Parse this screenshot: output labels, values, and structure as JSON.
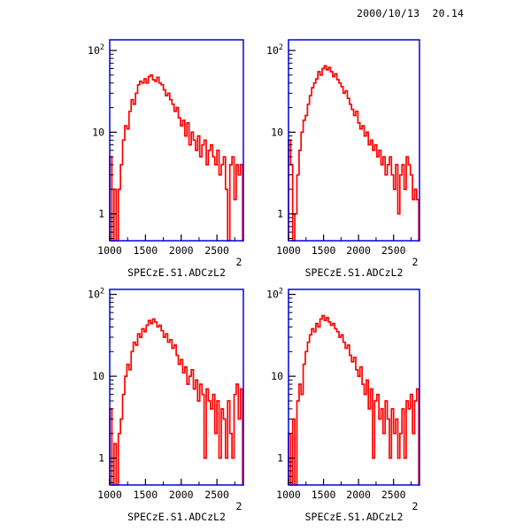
{
  "header": {
    "timestamp": "2000/10/13  20.14"
  },
  "colors": {
    "frame": "#0000ee",
    "histogram": "#ff0000",
    "text": "#000000",
    "background": "#ffffff"
  },
  "chart_data": [
    {
      "type": "bar",
      "subtype": "step-histogram",
      "position": "top-left",
      "xlabel": "SPECzE.S1.ADCzL2",
      "corner_label": "2",
      "ylog": true,
      "xlim": [
        1000,
        2870
      ],
      "ylim": [
        0.47,
        135
      ],
      "x_ticks": [
        1000,
        1500,
        2000,
        2500
      ],
      "x_minor_ticks": [
        1250,
        1750,
        2250,
        2750
      ],
      "y_ticks": [
        {
          "label": "1",
          "value": 1
        },
        {
          "label": "10",
          "value": 10
        },
        {
          "label": "10",
          "sup": "2",
          "value": 100
        }
      ],
      "bin_start": 1000,
      "bin_width": 30,
      "values": [
        5,
        0,
        2,
        0,
        2,
        4,
        8,
        12,
        11,
        18,
        25,
        22,
        30,
        38,
        42,
        40,
        45,
        40,
        48,
        50,
        44,
        42,
        47,
        40,
        38,
        33,
        28,
        30,
        25,
        22,
        18,
        20,
        15,
        12,
        14,
        9,
        13,
        7,
        10,
        8,
        6,
        9,
        5,
        7,
        8,
        4,
        6,
        7,
        5,
        4,
        6,
        3,
        4,
        5,
        2,
        0,
        4,
        5,
        1.5,
        4,
        3,
        4,
        0
      ]
    },
    {
      "type": "bar",
      "subtype": "step-histogram",
      "position": "top-right",
      "xlabel": "SPECzE.S1.ADCzL2",
      "corner_label": "2",
      "ylog": true,
      "xlim": [
        1000,
        2870
      ],
      "ylim": [
        0.47,
        135
      ],
      "x_ticks": [
        1000,
        1500,
        2000,
        2500
      ],
      "x_minor_ticks": [
        1250,
        1750,
        2250,
        2750
      ],
      "y_ticks": [
        {
          "label": "1",
          "value": 1
        },
        {
          "label": "10",
          "value": 10
        },
        {
          "label": "10",
          "sup": "2",
          "value": 100
        }
      ],
      "bin_start": 1000,
      "bin_width": 30,
      "values": [
        8,
        4,
        0,
        1,
        3,
        6,
        10,
        14,
        16,
        22,
        28,
        35,
        40,
        45,
        55,
        50,
        60,
        65,
        58,
        62,
        55,
        48,
        52,
        44,
        40,
        36,
        30,
        32,
        26,
        22,
        19,
        16,
        18,
        13,
        11,
        12,
        9,
        10,
        7,
        8,
        6,
        7,
        5,
        6,
        4,
        5,
        3,
        4,
        5,
        3,
        2,
        4,
        1,
        3,
        4,
        2,
        5,
        4,
        3,
        1.5,
        2,
        1.5,
        0
      ]
    },
    {
      "type": "bar",
      "subtype": "step-histogram",
      "position": "bottom-left",
      "xlabel": "SPECzE.S1.ADCzL2",
      "corner_label": "2",
      "ylog": true,
      "xlim": [
        1000,
        2870
      ],
      "ylim": [
        0.47,
        115
      ],
      "x_ticks": [
        1000,
        1500,
        2000,
        2500
      ],
      "x_minor_ticks": [
        1250,
        1750,
        2250,
        2750
      ],
      "y_ticks": [
        {
          "label": "1",
          "value": 1
        },
        {
          "label": "10",
          "value": 10
        },
        {
          "label": "10",
          "sup": "2",
          "value": 100
        }
      ],
      "bin_start": 1000,
      "bin_width": 30,
      "values": [
        4,
        0,
        1.5,
        0,
        2,
        3,
        6,
        10,
        14,
        12,
        20,
        26,
        24,
        33,
        30,
        38,
        35,
        42,
        48,
        44,
        50,
        46,
        40,
        42,
        36,
        30,
        33,
        26,
        28,
        22,
        24,
        18,
        14,
        16,
        11,
        13,
        8,
        10,
        12,
        7,
        9,
        5,
        8,
        6,
        1,
        7,
        5,
        4,
        6,
        2,
        5,
        1,
        4,
        3,
        1,
        5,
        2,
        1,
        6,
        8,
        3,
        7,
        0
      ]
    },
    {
      "type": "bar",
      "subtype": "step-histogram",
      "position": "bottom-right",
      "xlabel": "SPECzE.S1.ADCzL2",
      "corner_label": "2",
      "ylog": true,
      "xlim": [
        1000,
        2870
      ],
      "ylim": [
        0.47,
        115
      ],
      "x_ticks": [
        1000,
        1500,
        2000,
        2500
      ],
      "x_minor_ticks": [
        1250,
        1750,
        2250,
        2750
      ],
      "y_ticks": [
        {
          "label": "1",
          "value": 1
        },
        {
          "label": "10",
          "value": 10
        },
        {
          "label": "10",
          "sup": "2",
          "value": 100
        }
      ],
      "bin_start": 1000,
      "bin_width": 30,
      "values": [
        2,
        0,
        3,
        0,
        5,
        8,
        6,
        14,
        20,
        26,
        32,
        38,
        35,
        44,
        40,
        50,
        55,
        48,
        52,
        46,
        42,
        44,
        38,
        35,
        30,
        32,
        26,
        22,
        24,
        18,
        15,
        17,
        12,
        10,
        13,
        8,
        6,
        9,
        4,
        7,
        1,
        5,
        6,
        3,
        4,
        2,
        5,
        3,
        1,
        4,
        2,
        3,
        1,
        2,
        4,
        1,
        5,
        4,
        6,
        2,
        5,
        7,
        0
      ]
    }
  ]
}
